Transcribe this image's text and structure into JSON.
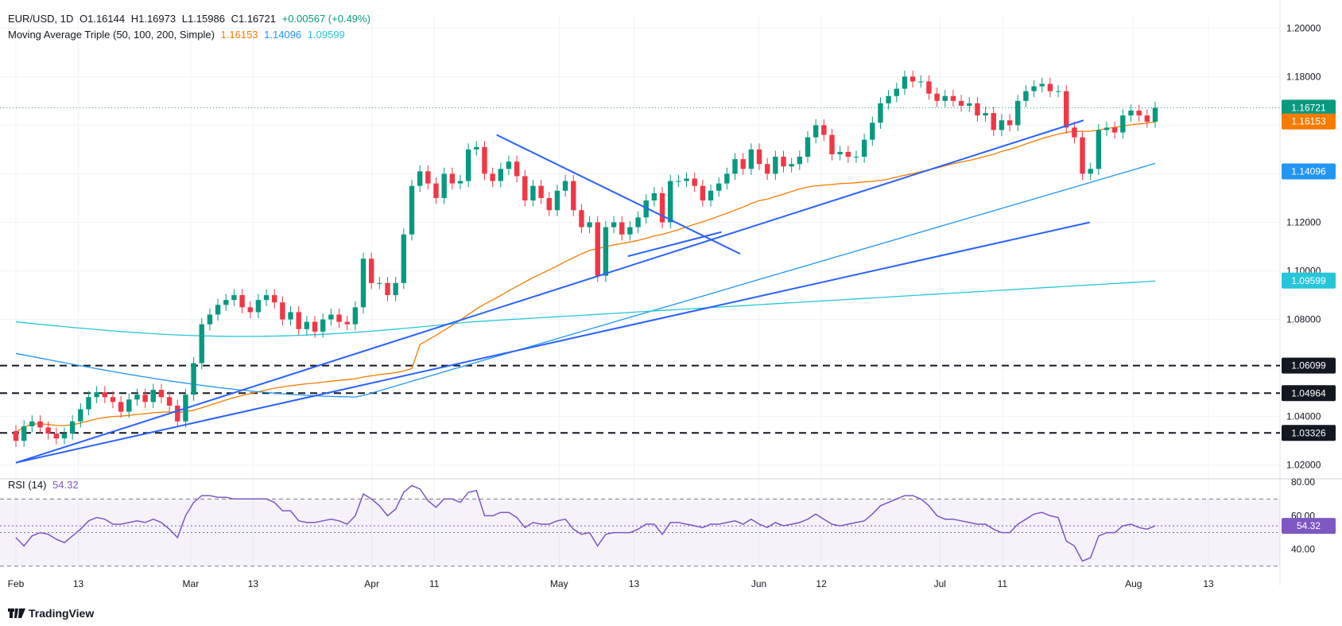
{
  "header": {
    "symbol": "EUR/USD, 1D",
    "open": "O1.16144",
    "high": "H1.16973",
    "low": "L1.15986",
    "close": "C1.16721",
    "change": "+0.00567 (+0.49%)",
    "ma_label": "Moving Average Triple (50, 100, 200, Simple)",
    "ma50": "1.16153",
    "ma100": "1.14096",
    "ma200": "1.09599"
  },
  "rsi": {
    "label": "RSI (14)",
    "value": "54.32"
  },
  "brand": "TradingView",
  "colors": {
    "up": "#089981",
    "down": "#f23645",
    "ma50": "#f57c00",
    "ma100": "#2196f3",
    "ma200": "#26c6da",
    "trend": "#2962ff",
    "rsi": "#7e57c2",
    "grid": "#f0f3fa"
  },
  "chart_data": {
    "type": "candlestick",
    "ylim": [
      1.015,
      1.205
    ],
    "price_ticks": [
      "1.20000",
      "1.18000",
      "1.16000",
      "1.14000",
      "1.12000",
      "1.10000",
      "1.08000",
      "1.06000",
      "1.04000",
      "1.02000"
    ],
    "x_tick_labels": [
      "Feb",
      "13",
      "Mar",
      "13",
      "Apr",
      "11",
      "May",
      "13",
      "Jun",
      "12",
      "Jul",
      "11",
      "Aug",
      "13"
    ],
    "x_tick_dates": [
      "2025-02-03",
      "2025-02-13",
      "2025-03-03",
      "2025-03-13",
      "2025-04-01",
      "2025-04-11",
      "2025-05-01",
      "2025-05-13",
      "2025-06-02",
      "2025-06-12",
      "2025-07-01",
      "2025-07-11",
      "2025-08-01",
      "2025-08-13"
    ],
    "horizontal_levels": [
      1.06099,
      1.04964,
      1.03326
    ],
    "price_labels": [
      {
        "text": "1.16721",
        "value": 1.16721,
        "color": "#089981"
      },
      {
        "text": "1.16153",
        "value": 1.16153,
        "color": "#f57c00"
      },
      {
        "text": "1.14096",
        "value": 1.14096,
        "color": "#2196f3"
      },
      {
        "text": "1.09599",
        "value": 1.09599,
        "color": "#26c6da"
      },
      {
        "text": "1.06099",
        "value": 1.06099,
        "color": "#131722"
      },
      {
        "text": "1.04964",
        "value": 1.04964,
        "color": "#131722"
      },
      {
        "text": "1.03326",
        "value": 1.03326,
        "color": "#131722"
      }
    ],
    "trendlines": [
      {
        "from": [
          "2025-02-03",
          1.021
        ],
        "to": [
          "2025-07-24",
          1.162
        ]
      },
      {
        "from": [
          "2025-02-03",
          1.021
        ],
        "to": [
          "2025-07-25",
          1.12
        ]
      },
      {
        "from": [
          "2025-04-21",
          1.156
        ],
        "to": [
          "2025-05-30",
          1.107
        ]
      },
      {
        "from": [
          "2025-05-12",
          1.106
        ],
        "to": [
          "2025-05-27",
          1.116
        ]
      }
    ],
    "closes": [
      1.03,
      1.036,
      1.038,
      1.0355,
      1.033,
      1.031,
      1.033,
      1.038,
      1.043,
      1.048,
      1.05,
      1.048,
      1.046,
      1.042,
      1.047,
      1.049,
      1.046,
      1.051,
      1.048,
      1.0445,
      1.038,
      1.049,
      1.062,
      1.078,
      1.082,
      1.086,
      1.088,
      1.09,
      1.085,
      1.083,
      1.088,
      1.09,
      1.087,
      1.08,
      1.083,
      1.076,
      1.079,
      1.075,
      1.08,
      1.082,
      1.079,
      1.078,
      1.085,
      1.105,
      1.095,
      1.095,
      1.09,
      1.095,
      1.115,
      1.135,
      1.141,
      1.136,
      1.13,
      1.14,
      1.136,
      1.137,
      1.15,
      1.151,
      1.14,
      1.137,
      1.142,
      1.145,
      1.139,
      1.129,
      1.135,
      1.13,
      1.125,
      1.133,
      1.137,
      1.125,
      1.118,
      1.12,
      1.098,
      1.118,
      1.12,
      1.115,
      1.118,
      1.122,
      1.129,
      1.132,
      1.12,
      1.137,
      1.137,
      1.138,
      1.135,
      1.129,
      1.133,
      1.136,
      1.14,
      1.146,
      1.142,
      1.15,
      1.144,
      1.14,
      1.147,
      1.143,
      1.144,
      1.147,
      1.155,
      1.16,
      1.156,
      1.148,
      1.149,
      1.147,
      1.147,
      1.154,
      1.161,
      1.169,
      1.172,
      1.175,
      1.18,
      1.178,
      1.178,
      1.173,
      1.17,
      1.172,
      1.17,
      1.168,
      1.169,
      1.164,
      1.165,
      1.158,
      1.162,
      1.16,
      1.17,
      1.174,
      1.176,
      1.177,
      1.174,
      1.174,
      1.159,
      1.155,
      1.14,
      1.142,
      1.158,
      1.159,
      1.157,
      1.164,
      1.166,
      1.164,
      1.1614,
      1.1672
    ],
    "rsi_values": [
      47,
      42,
      48,
      50,
      49,
      46,
      44,
      48,
      52,
      57,
      59,
      58,
      55,
      55,
      56,
      57,
      56,
      58,
      56,
      52,
      47,
      60,
      68,
      72,
      72,
      71,
      71,
      70,
      70,
      70,
      70,
      70,
      68,
      63,
      63,
      57,
      56,
      56,
      57,
      58,
      57,
      55,
      60,
      73,
      70,
      66,
      60,
      64,
      74,
      78,
      76,
      69,
      65,
      70,
      70,
      68,
      74,
      75,
      60,
      60,
      62,
      62,
      59,
      53,
      56,
      55,
      55,
      57,
      58,
      52,
      49,
      50,
      42,
      49,
      50,
      50,
      50,
      52,
      55,
      55,
      49,
      56,
      56,
      55,
      54,
      53,
      55,
      55,
      56,
      57,
      55,
      58,
      55,
      53,
      56,
      54,
      55,
      56,
      58,
      61,
      58,
      55,
      54,
      55,
      56,
      57,
      61,
      66,
      68,
      70,
      72,
      72,
      70,
      66,
      60,
      58,
      58,
      57,
      56,
      55,
      55,
      52,
      50,
      50,
      55,
      58,
      61,
      62,
      60,
      59,
      45,
      42,
      33,
      35,
      48,
      50,
      50,
      54,
      55,
      53,
      52,
      54
    ],
    "rsi_ylim": [
      28,
      82
    ],
    "rsi_ticks": [
      "80.00",
      "60.00",
      "40.00"
    ],
    "rsi_bands": [
      70,
      30,
      50
    ]
  }
}
